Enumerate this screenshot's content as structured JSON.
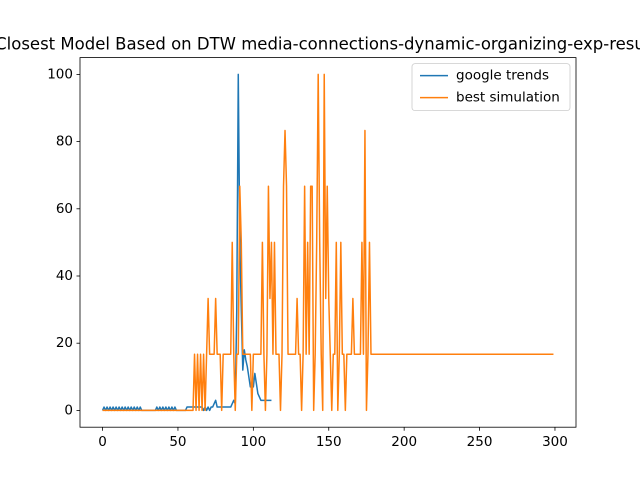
{
  "chart_data": {
    "type": "line",
    "title": "Closest Model Based on DTW media-connections-dynamic-organizing-exp-resu",
    "xlim": [
      -14.95,
      313.95
    ],
    "xticks": [
      0,
      50,
      100,
      150,
      200,
      250,
      300
    ],
    "ylim": [
      -5,
      105
    ],
    "yticks": [
      0,
      20,
      40,
      60,
      80,
      100
    ],
    "legend": "upper right",
    "series": [
      {
        "name": "google trends",
        "color": "#1f77b4",
        "values": [
          0,
          1,
          0,
          1,
          0,
          1,
          0,
          1,
          0,
          1,
          0,
          1,
          0,
          1,
          0,
          1,
          0,
          1,
          0,
          1,
          0,
          1,
          0,
          1,
          0,
          1,
          0,
          0,
          0,
          0,
          0,
          0,
          0,
          0,
          0,
          0,
          1,
          0,
          1,
          0,
          1,
          0,
          1,
          0,
          1,
          0,
          1,
          0,
          1,
          0,
          0,
          0,
          0,
          0,
          0,
          0,
          1,
          1,
          1,
          1,
          1,
          1,
          1,
          1,
          1,
          1,
          1,
          0,
          1,
          0,
          1,
          0,
          1,
          1,
          2,
          3,
          1,
          1,
          1,
          1,
          1,
          1,
          1,
          1,
          1,
          1,
          2,
          3,
          2,
          30,
          100,
          50,
          30,
          12,
          18,
          15,
          13,
          10,
          7,
          8,
          7,
          11,
          8,
          5,
          4,
          3,
          3,
          3,
          3,
          3,
          3,
          3,
          3
        ]
      },
      {
        "name": "best simulation",
        "color": "#ff7f0e",
        "values": [
          0,
          0,
          0,
          0,
          0,
          0,
          0,
          0,
          0,
          0,
          0,
          0,
          0,
          0,
          0,
          0,
          0,
          0,
          0,
          0,
          0,
          0,
          0,
          0,
          0,
          0,
          0,
          0,
          0,
          0,
          0,
          0,
          0,
          0,
          0,
          0,
          0,
          0,
          0,
          0,
          0,
          0,
          0,
          0,
          0,
          0,
          0,
          0,
          0,
          0,
          0,
          0,
          0,
          0,
          0,
          0,
          0,
          0,
          0,
          0,
          0,
          16.7,
          0,
          16.7,
          0,
          16.7,
          0,
          16.7,
          0,
          16.7,
          33.3,
          16.7,
          16.7,
          16.7,
          16.7,
          33.3,
          16.7,
          16.7,
          16.7,
          0,
          16.7,
          16.7,
          16.7,
          16.7,
          16.7,
          16.7,
          50,
          16.7,
          0,
          16.7,
          16.7,
          66.7,
          50,
          16.7,
          16.7,
          16.7,
          16.7,
          16.7,
          16.7,
          0,
          16.7,
          16.7,
          16.7,
          16.7,
          16.7,
          16.7,
          50,
          16.7,
          0,
          16.7,
          66.7,
          33.3,
          50,
          16.7,
          50,
          16.7,
          16.7,
          16.7,
          0,
          16.7,
          66.7,
          83.3,
          66.7,
          16.7,
          16.7,
          16.7,
          16.7,
          16.7,
          16.7,
          33.3,
          16.7,
          16.7,
          0,
          16.7,
          66.7,
          16.7,
          50,
          16.7,
          66.7,
          66.7,
          0,
          16.7,
          50,
          100,
          50,
          16.7,
          0,
          100,
          33.3,
          66.7,
          33.3,
          16.7,
          0,
          16.7,
          16.7,
          50,
          0,
          16.7,
          50,
          16.7,
          16.7,
          0,
          16.7,
          16.7,
          16.7,
          16.7,
          33.3,
          16.7,
          16.7,
          16.7,
          16.7,
          16.7,
          50,
          16.7,
          83.3,
          0,
          16.7,
          50,
          16.7,
          16.7,
          16.7,
          16.7,
          16.7,
          16.7,
          16.7,
          16.7,
          16.7,
          16.7,
          16.7,
          16.7,
          16.7,
          16.7,
          16.7,
          16.7,
          16.7,
          16.7,
          16.7,
          16.7,
          16.7,
          16.7,
          16.7,
          16.7,
          16.7,
          16.7,
          16.7,
          16.7,
          16.7,
          16.7,
          16.7,
          16.7,
          16.7,
          16.7,
          16.7,
          16.7,
          16.7,
          16.7,
          16.7,
          16.7,
          16.7,
          16.7,
          16.7,
          16.7,
          16.7,
          16.7,
          16.7,
          16.7,
          16.7,
          16.7,
          16.7,
          16.7,
          16.7,
          16.7,
          16.7,
          16.7,
          16.7,
          16.7,
          16.7,
          16.7,
          16.7,
          16.7,
          16.7,
          16.7,
          16.7,
          16.7,
          16.7,
          16.7,
          16.7,
          16.7,
          16.7,
          16.7,
          16.7,
          16.7,
          16.7,
          16.7,
          16.7,
          16.7,
          16.7,
          16.7,
          16.7,
          16.7,
          16.7,
          16.7,
          16.7,
          16.7,
          16.7,
          16.7,
          16.7,
          16.7,
          16.7,
          16.7,
          16.7,
          16.7,
          16.7,
          16.7,
          16.7,
          16.7,
          16.7,
          16.7,
          16.7,
          16.7,
          16.7,
          16.7,
          16.7,
          16.7,
          16.7,
          16.7,
          16.7,
          16.7,
          16.7,
          16.7,
          16.7,
          16.7,
          16.7,
          16.7,
          16.7,
          16.7,
          16.7,
          16.7,
          16.7,
          16.7
        ]
      }
    ]
  }
}
